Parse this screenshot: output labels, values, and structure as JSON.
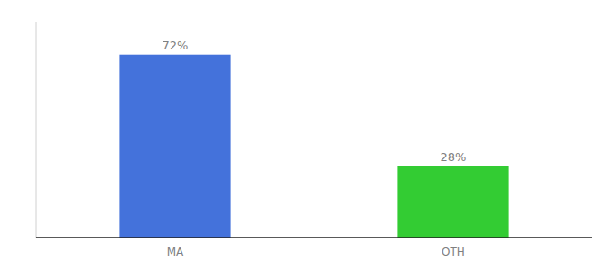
{
  "chart_data": {
    "type": "bar",
    "categories": [
      "MA",
      "OTH"
    ],
    "values": [
      72,
      28
    ],
    "value_labels": [
      "72%",
      "28%"
    ],
    "colors": [
      "#4472db",
      "#33cc33"
    ],
    "ylim": [
      0,
      85
    ],
    "data_labels": true,
    "tick_labels": "x",
    "grid": false
  }
}
